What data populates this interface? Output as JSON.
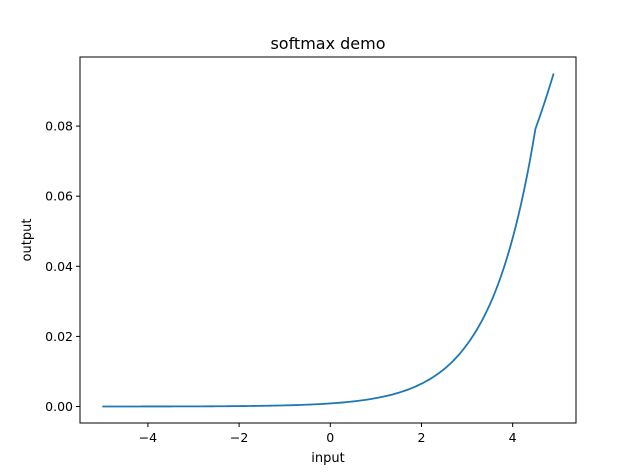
{
  "chart_data": {
    "type": "line",
    "title": "softmax demo",
    "xlabel": "input",
    "ylabel": "output",
    "xlim": [
      -5.49,
      5.39
    ],
    "ylim": [
      -0.0047,
      0.0997
    ],
    "x_ticks": [
      -4,
      -2,
      0,
      2,
      4
    ],
    "x_tick_labels": [
      "−4",
      "−2",
      "0",
      "2",
      "4"
    ],
    "y_ticks": [
      0.0,
      0.02,
      0.04,
      0.06,
      0.08
    ],
    "y_tick_labels": [
      "0.00",
      "0.02",
      "0.04",
      "0.06",
      "0.08"
    ],
    "grid": false,
    "series": [
      {
        "color": "#1f77b4",
        "x": [
          -5.0,
          -4.5,
          -4.0,
          -3.5,
          -3.0,
          -2.5,
          -2.0,
          -1.5,
          -1.0,
          -0.5,
          0.0,
          0.5,
          1.0,
          1.5,
          2.0,
          2.5,
          3.0,
          3.5,
          4.0,
          4.5,
          4.9
        ],
        "y": [
          1e-05,
          1e-05,
          2e-05,
          3e-05,
          4e-05,
          7e-05,
          0.00012,
          0.0002,
          0.00032,
          0.00053,
          0.00088,
          0.00145,
          0.00239,
          0.00394,
          0.0065,
          0.0107,
          0.0177,
          0.0291,
          0.048,
          0.0792,
          0.095
        ]
      }
    ]
  }
}
